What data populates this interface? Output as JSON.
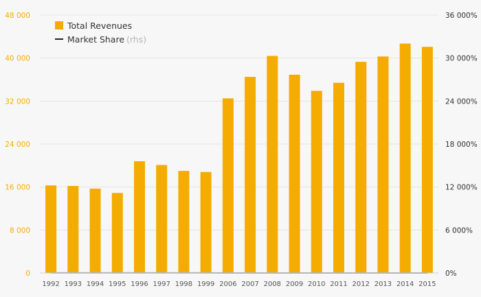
{
  "chart_data": {
    "type": "bar",
    "categories": [
      "1992",
      "1993",
      "1994",
      "1995",
      "1996",
      "1997",
      "1998",
      "1999",
      "2006",
      "2007",
      "2008",
      "2009",
      "2010",
      "2011",
      "2012",
      "2013",
      "2014",
      "2015"
    ],
    "series": [
      {
        "name": "Total Revenues",
        "type": "bar",
        "axis": "left",
        "color": "#f5ac00",
        "values": [
          16300,
          16200,
          15700,
          14900,
          20800,
          20100,
          19000,
          18800,
          32500,
          36500,
          40400,
          36900,
          33900,
          35400,
          39300,
          40300,
          42700,
          42100
        ]
      },
      {
        "name": "Market Share",
        "name_suffix": "(rhs)",
        "type": "line",
        "axis": "right",
        "color": "#b5b5b5",
        "legend_color": "#222222",
        "values": [
          21.5,
          18.5,
          26,
          23,
          31,
          30.2,
          25,
          26.9,
          0,
          0,
          0,
          0,
          0,
          0,
          0,
          0,
          0,
          0
        ]
      }
    ],
    "left_axis": {
      "ylim": [
        0,
        48000
      ],
      "ticks": [
        0,
        8000,
        16000,
        24000,
        32000,
        40000,
        48000
      ],
      "tick_labels": [
        "0",
        "8 000",
        "16 000",
        "24 000",
        "32 000",
        "40 000",
        "48 000"
      ],
      "color": "#f5ac00"
    },
    "right_axis": {
      "ylim": [
        0,
        36000
      ],
      "ticks": [
        0,
        6000,
        12000,
        18000,
        24000,
        30000,
        36000
      ],
      "tick_labels": [
        "0%",
        "6 000%",
        "12 000%",
        "18 000%",
        "24 000%",
        "30 000%",
        "36 000%"
      ]
    },
    "legend_position": "top-left",
    "grid": true
  }
}
